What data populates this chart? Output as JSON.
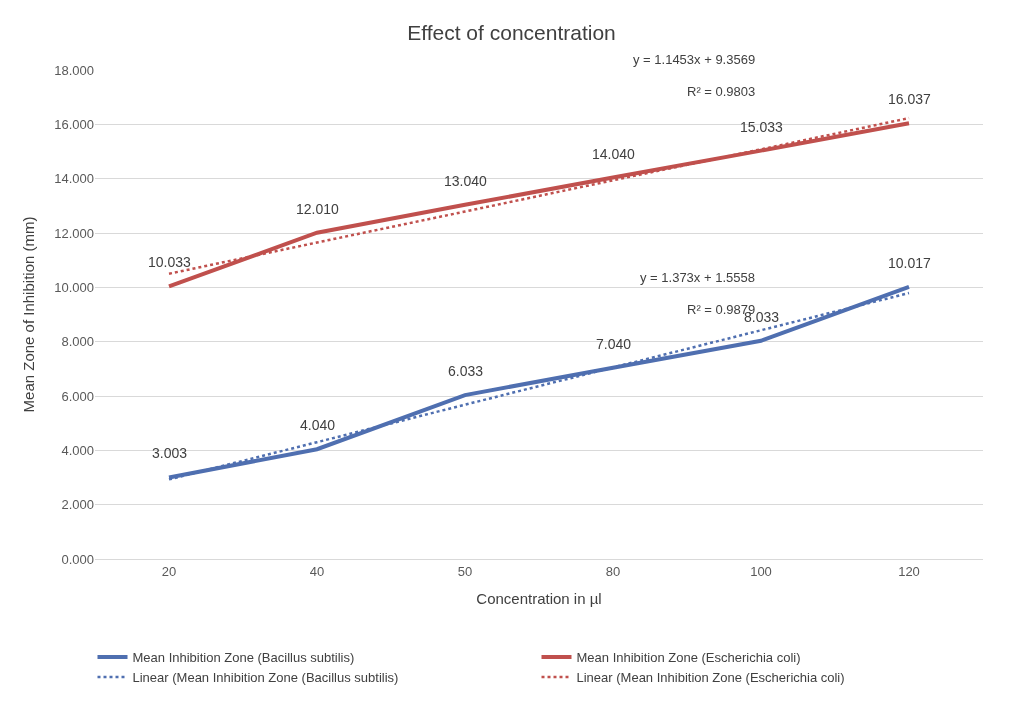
{
  "chart_data": {
    "type": "line",
    "title": "Effect of concentration",
    "xlabel": "Concentration in µl",
    "ylabel": "Mean Zone of Inhibition (mm)",
    "categories": [
      "20",
      "40",
      "50",
      "80",
      "100",
      "120"
    ],
    "series": [
      {
        "name": "Mean Inhibition Zone (Bacillus subtilis)",
        "color": "#4f6fb0",
        "values": [
          3.003,
          4.04,
          6.033,
          7.04,
          8.033,
          10.017
        ],
        "value_labels": [
          "3.003",
          "4.040",
          "6.033",
          "7.040",
          "8.033",
          "10.017"
        ],
        "line_style": "solid"
      },
      {
        "name": "Mean Inhibition Zone (Escherichia coli)",
        "color": "#c0504d",
        "values": [
          10.033,
          12.01,
          13.04,
          14.04,
          15.033,
          16.037
        ],
        "value_labels": [
          "10.033",
          "12.010",
          "13.040",
          "14.040",
          "15.033",
          "16.037"
        ],
        "line_style": "solid"
      },
      {
        "name": "Linear (Mean Inhibition Zone (Bacillus subtilis)",
        "color": "#4f6fb0",
        "values": [
          2.93,
          4.3,
          5.68,
          7.05,
          8.42,
          9.79
        ],
        "line_style": "dotted"
      },
      {
        "name": "Linear (Mean Inhibition Zone (Escherichia coli)",
        "color": "#c0504d",
        "values": [
          10.5,
          11.65,
          12.79,
          13.94,
          15.08,
          16.23
        ],
        "line_style": "dotted"
      }
    ],
    "annotations": [
      "y = 1.1453x + 9.3569",
      "R² = 0.9803",
      "y = 1.373x + 1.5558",
      "R² = 0.9879"
    ],
    "ylim": [
      0,
      18
    ],
    "yticks": [
      {
        "value": 0,
        "label": "0.000"
      },
      {
        "value": 2,
        "label": "2.000"
      },
      {
        "value": 4,
        "label": "4.000"
      },
      {
        "value": 6,
        "label": "6.000"
      },
      {
        "value": 8,
        "label": "8.000"
      },
      {
        "value": 10,
        "label": "10.000"
      },
      {
        "value": 12,
        "label": "12.000"
      },
      {
        "value": 14,
        "label": "14.000"
      },
      {
        "value": 16,
        "label": "16.000"
      },
      {
        "value": 18,
        "label": "18.000"
      }
    ],
    "grid": "y",
    "legend": "bottom",
    "marker": "none"
  }
}
